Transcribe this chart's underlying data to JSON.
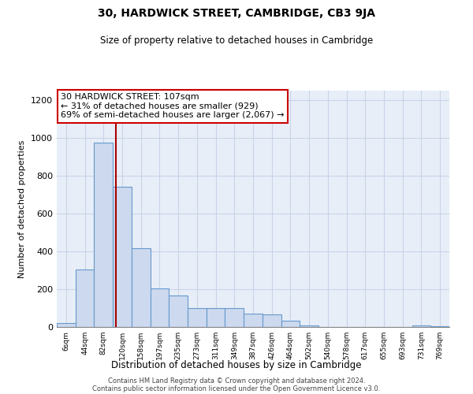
{
  "title": "30, HARDWICK STREET, CAMBRIDGE, CB3 9JA",
  "subtitle": "Size of property relative to detached houses in Cambridge",
  "xlabel": "Distribution of detached houses by size in Cambridge",
  "ylabel": "Number of detached properties",
  "bar_color": "#ccd9ee",
  "bar_edge_color": "#6699cc",
  "categories": [
    "6sqm",
    "44sqm",
    "82sqm",
    "120sqm",
    "158sqm",
    "197sqm",
    "235sqm",
    "273sqm",
    "311sqm",
    "349sqm",
    "387sqm",
    "426sqm",
    "464sqm",
    "502sqm",
    "540sqm",
    "578sqm",
    "617sqm",
    "655sqm",
    "693sqm",
    "731sqm",
    "769sqm"
  ],
  "values": [
    20,
    305,
    975,
    740,
    415,
    205,
    165,
    100,
    100,
    100,
    70,
    65,
    35,
    10,
    0,
    0,
    0,
    0,
    0,
    10,
    5
  ],
  "annotation_text": "30 HARDWICK STREET: 107sqm\n← 31% of detached houses are smaller (929)\n69% of semi-detached houses are larger (2,067) →",
  "vline_color": "#aa0000",
  "annotation_box_edge": "#cc0000",
  "footer1": "Contains HM Land Registry data © Crown copyright and database right 2024.",
  "footer2": "Contains public sector information licensed under the Open Government Licence v3.0.",
  "ylim": [
    0,
    1250
  ],
  "yticks": [
    0,
    200,
    400,
    600,
    800,
    1000,
    1200
  ],
  "grid_color": "#c8d4e8",
  "background_color": "#e8eef8",
  "vline_x_data": 2.66
}
